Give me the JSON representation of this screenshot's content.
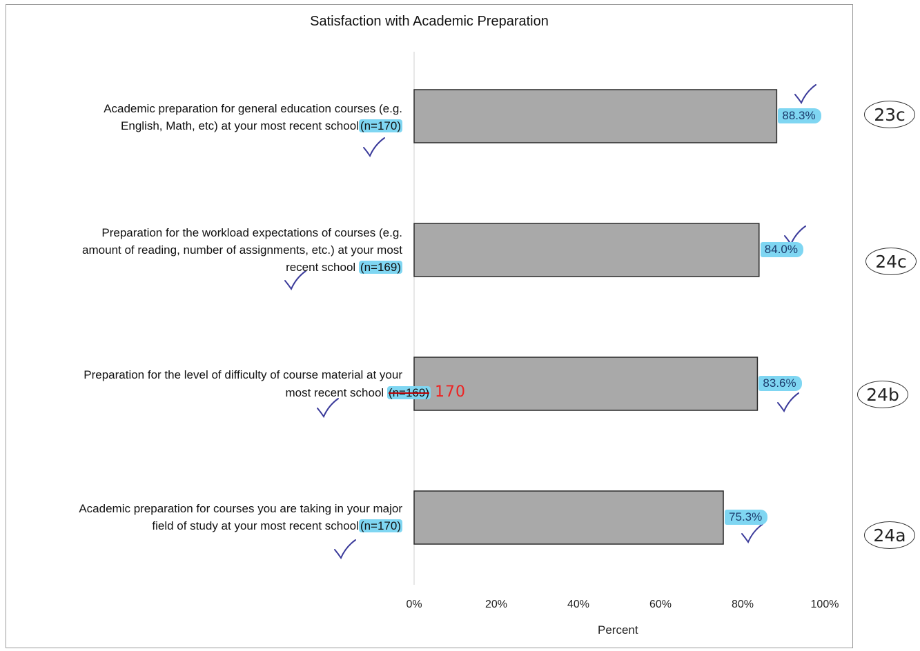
{
  "chart_data": {
    "type": "bar",
    "orientation": "horizontal",
    "title": "Satisfaction with Academic Preparation",
    "xlabel": "Percent",
    "ylabel": "",
    "xlim": [
      0,
      100
    ],
    "x_ticks": [
      "0%",
      "20%",
      "40%",
      "60%",
      "80%",
      "100%"
    ],
    "grid": false,
    "categories": [
      {
        "line1": "Academic preparation for general education courses (e.g.",
        "line2": "English, Math, etc) at your most recent school",
        "line3": "",
        "n_note": "(n=170)",
        "value": 88.3,
        "value_label": "88.3%",
        "code": "23c"
      },
      {
        "line1": "Preparation for the workload expectations of courses (e.g.",
        "line2": "amount of reading, number of assignments, etc.) at your most",
        "line3": "recent school",
        "n_note": "(n=169)",
        "value": 84.0,
        "value_label": "84.0%",
        "code": "24c"
      },
      {
        "line1": "Preparation for the level of difficulty of course material at your",
        "line2": "most recent school",
        "line3": "",
        "n_note": "(n=169)",
        "n_correction": "170",
        "value": 83.6,
        "value_label": "83.6%",
        "code": "24b"
      },
      {
        "line1": "Academic preparation for courses you are taking in your major",
        "line2": "field of study at your most recent school",
        "line3": "",
        "n_note": "(n=170)",
        "value": 75.3,
        "value_label": "75.3%",
        "code": "24a"
      }
    ],
    "colors": {
      "bar_fill": "#a9a9a9",
      "bar_edge": "#2a2a2a",
      "highlight": "#7fd6f2",
      "check_ink": "#3a3a9a",
      "correction_ink": "#ee2222"
    }
  }
}
